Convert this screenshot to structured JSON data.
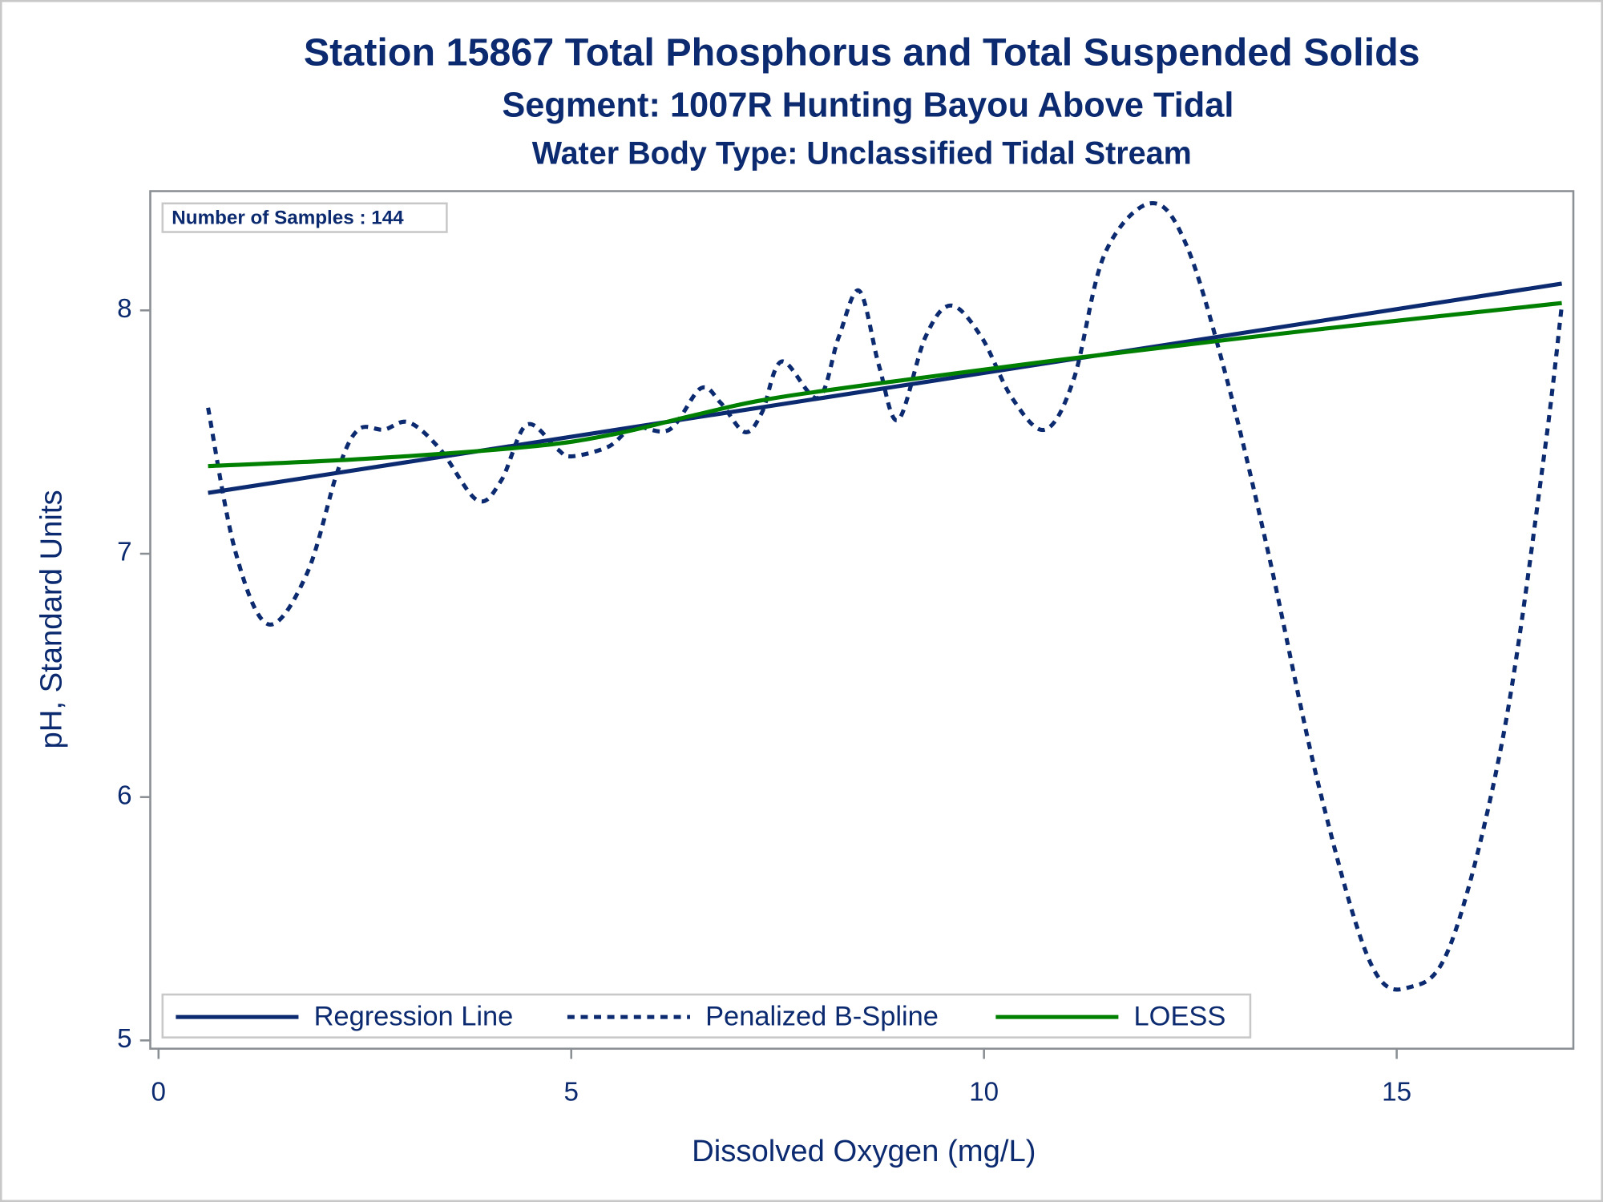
{
  "chart_data": {
    "type": "line",
    "title": "Station 15867  Total Phosphorus and Total Suspended Solids",
    "subtitle": "Segment: 1007R  Hunting Bayou Above Tidal",
    "subtitle2": "Water Body Type: Unclassified Tidal Stream",
    "annotation": "Number of Samples : 144",
    "xlabel": "Dissolved Oxygen (mg/L)",
    "ylabel": "pH, Standard Units",
    "xlim": [
      -0.1,
      17.14
    ],
    "ylim": [
      4.966,
      8.49
    ],
    "xticks": [
      0,
      5,
      10,
      15
    ],
    "yticks": [
      5,
      6,
      7,
      8
    ],
    "grid": false,
    "legend": "bottom-left",
    "series": [
      {
        "name": "Regression Line",
        "color": "#0b2a6f",
        "style": "solid",
        "x": [
          0.6,
          17.0
        ],
        "values": [
          7.25,
          8.11
        ]
      },
      {
        "name": "Penalized B-Spline",
        "color": "#0b2a6f",
        "style": "dashed",
        "x": [
          0.6,
          0.93,
          1.33,
          1.8,
          2.17,
          2.42,
          2.73,
          3.03,
          3.41,
          3.86,
          4.15,
          4.46,
          4.83,
          5.0,
          5.45,
          5.76,
          6.19,
          6.57,
          6.81,
          7.1,
          7.31,
          7.55,
          7.99,
          8.24,
          8.49,
          8.73,
          8.96,
          9.29,
          9.6,
          9.97,
          10.34,
          10.74,
          11.09,
          11.46,
          12.02,
          12.45,
          12.94,
          13.44,
          14.06,
          14.68,
          15.17,
          15.67,
          16.29,
          16.78,
          17.0
        ],
        "values": [
          7.6,
          7.01,
          6.71,
          6.92,
          7.34,
          7.51,
          7.51,
          7.54,
          7.43,
          7.22,
          7.3,
          7.53,
          7.43,
          7.4,
          7.44,
          7.52,
          7.51,
          7.68,
          7.62,
          7.5,
          7.58,
          7.79,
          7.64,
          7.89,
          8.08,
          7.77,
          7.55,
          7.89,
          8.02,
          7.89,
          7.64,
          7.51,
          7.72,
          8.23,
          8.44,
          8.27,
          7.72,
          7.01,
          6.04,
          5.32,
          5.22,
          5.41,
          6.25,
          7.39,
          8.02
        ]
      },
      {
        "name": "LOESS",
        "color": "#008000",
        "style": "solid",
        "x": [
          0.6,
          2.5,
          4.5,
          5.5,
          6.5,
          7.3,
          8.5,
          11.0,
          14.0,
          17.0
        ],
        "values": [
          7.36,
          7.39,
          7.44,
          7.49,
          7.57,
          7.63,
          7.69,
          7.8,
          7.92,
          8.03
        ]
      }
    ]
  }
}
